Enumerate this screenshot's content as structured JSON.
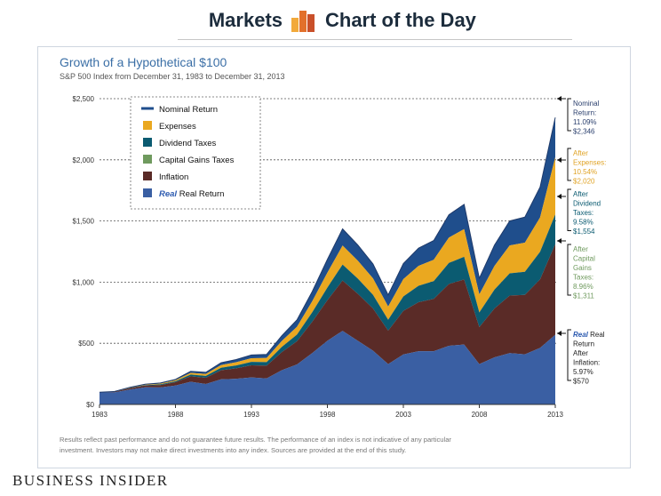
{
  "header": {
    "left_title": "Markets",
    "right_title": "Chart of the Day",
    "logo_icon": "bar-chart-logo-icon",
    "logo_colors": [
      "#f2a93b",
      "#e2702b",
      "#c9502a"
    ]
  },
  "footer": {
    "brand": "Business Insider"
  },
  "chart_data": {
    "type": "area",
    "title": "Growth of a Hypothetical $100",
    "subtitle": "S&P 500 Index from December 31, 1983 to December 31, 2013",
    "xlabel": "",
    "ylabel": "",
    "xlim": [
      1983,
      2013
    ],
    "ylim": [
      0,
      2500
    ],
    "x_ticks": [
      "1983",
      "1988",
      "1993",
      "1998",
      "2003",
      "2008",
      "2013"
    ],
    "y_ticks": [
      "$0",
      "$500",
      "$1,000",
      "$1,500",
      "$2,000",
      "$2,500"
    ],
    "grid": "dotted horizontal",
    "legend_position": "top-left",
    "x": [
      1983,
      1984,
      1985,
      1986,
      1987,
      1988,
      1989,
      1990,
      1991,
      1992,
      1993,
      1994,
      1995,
      1996,
      1997,
      1998,
      1999,
      2000,
      2001,
      2002,
      2003,
      2004,
      2005,
      2006,
      2007,
      2008,
      2009,
      2010,
      2011,
      2012,
      2013
    ],
    "series": [
      {
        "name": "Nominal Return",
        "color": "#1f4e8c",
        "legend_symbol": "line",
        "values": [
          100,
          106,
          140,
          166,
          175,
          205,
          270,
          262,
          341,
          367,
          404,
          409,
          562,
          691,
          922,
          1185,
          1435,
          1304,
          1149,
          895,
          1152,
          1278,
          1340,
          1551,
          1636,
          1031,
          1303,
          1500,
          1532,
          1777,
          2346
        ]
      },
      {
        "name": "Expenses",
        "color": "#eaa820",
        "legend_symbol": "square",
        "values": [
          100,
          105,
          138,
          162,
          170,
          198,
          258,
          249,
          322,
          345,
          378,
          380,
          519,
          635,
          843,
          1078,
          1299,
          1176,
          1031,
          800,
          1025,
          1133,
          1183,
          1364,
          1433,
          900,
          1133,
          1300,
          1323,
          1529,
          2020
        ]
      },
      {
        "name": "Dividend Taxes",
        "color": "#0b5b71",
        "legend_symbol": "square",
        "values": [
          100,
          104,
          135,
          158,
          164,
          190,
          244,
          233,
          300,
          319,
          348,
          346,
          470,
          571,
          753,
          956,
          1144,
          1029,
          897,
          692,
          883,
          970,
          1008,
          1157,
          1207,
          752,
          940,
          1072,
          1085,
          1248,
          1554
        ]
      },
      {
        "name": "Capital Gains Taxes",
        "color": "#6f9a5e",
        "legend_symbol": "square",
        "values": [
          100,
          103,
          132,
          154,
          158,
          182,
          230,
          218,
          280,
          295,
          320,
          317,
          428,
          517,
          676,
          852,
          1013,
          905,
          785,
          603,
          765,
          836,
          863,
          985,
          1022,
          632,
          785,
          890,
          895,
          1023,
          1311
        ]
      },
      {
        "name": "Inflation",
        "color": "#5a2b27",
        "legend_symbol": "square",
        "values": [
          100,
          103,
          132,
          154,
          158,
          182,
          230,
          218,
          280,
          295,
          320,
          317,
          428,
          517,
          676,
          852,
          1013,
          905,
          785,
          603,
          765,
          836,
          863,
          985,
          1022,
          632,
          785,
          890,
          895,
          1023,
          1311
        ]
      },
      {
        "name": "Real Return",
        "legend_prefix": "Real",
        "color": "#3a5fa3",
        "legend_symbol": "square",
        "values": [
          100,
          99,
          122,
          140,
          139,
          154,
          185,
          167,
          205,
          210,
          221,
          213,
          280,
          327,
          420,
          520,
          602,
          520,
          440,
          330,
          409,
          435,
          435,
          480,
          490,
          330,
          385,
          420,
          410,
          462,
          570
        ]
      }
    ],
    "annotations": [
      {
        "lines": [
          "Nominal",
          "Return:",
          "11.09%",
          "$2,346"
        ],
        "color": "#2a3f6d"
      },
      {
        "lines": [
          "After",
          "Expenses:",
          "10.54%",
          "$2,020"
        ],
        "color": "#e0a325"
      },
      {
        "lines": [
          "After",
          "Dividend",
          "Taxes:",
          "9.58%",
          "$1,554"
        ],
        "color": "#0b5b71"
      },
      {
        "lines": [
          "After",
          "Capital",
          "Gains",
          "Taxes:",
          "8.96%",
          "$1,311"
        ],
        "color": "#6f9a5e"
      },
      {
        "lines": [
          "Real Real",
          "Return",
          "After",
          "Inflation:",
          "5.97%",
          "$570"
        ],
        "italic_prefix": "Real",
        "color": "#222222"
      }
    ],
    "note": "Results reflect past performance and do not guarantee future results. The performance of an index is not indicative of any particular investment. Investors may not make direct investments into any index. Sources are provided at the end of this study."
  }
}
